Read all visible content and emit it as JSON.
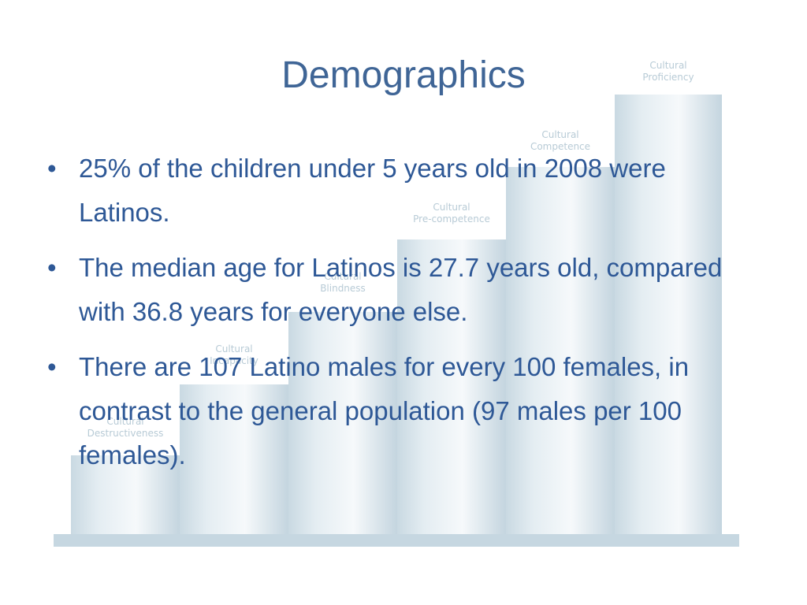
{
  "slide": {
    "title": "Demographics",
    "bullets": [
      {
        "text": "25% of the children under 5 years old in 2008 were Latinos."
      },
      {
        "text": "The median age for Latinos is 27.7 years old, compared with 36.8 years for everyone else."
      },
      {
        "text": "There are 107 Latino males for every 100 females, in contrast to the general population (97 males per 100 females)."
      }
    ],
    "bullet_glyph": "•"
  },
  "background_stairs": {
    "labels": [
      {
        "line1": "Cultural",
        "line2": "Destructiveness"
      },
      {
        "line1": "Cultural",
        "line2": "Incapacity"
      },
      {
        "line1": "Cultural",
        "line2": "Blindness"
      },
      {
        "line1": "Cultural",
        "line2": "Pre-competence"
      },
      {
        "line1": "Cultural",
        "line2": "Competence"
      },
      {
        "line1": "Cultural",
        "line2": "Proficiency"
      }
    ]
  },
  "colors": {
    "title": "#3f6596",
    "text": "#2e5896",
    "stairs": "#dbe6ec"
  }
}
